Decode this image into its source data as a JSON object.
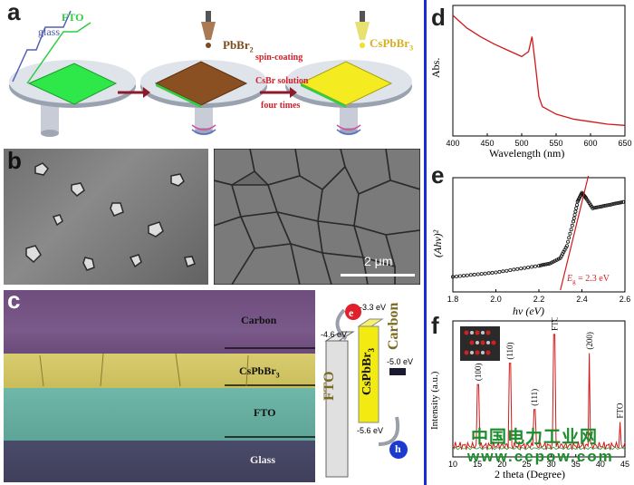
{
  "panels": {
    "a": {
      "label": "a",
      "glass_label": "glass",
      "fto_label": "FTO",
      "pbbr2_label": "PbBr",
      "pbbr2_sub": "2",
      "cspbbr3_label": "CsPbBr",
      "cspbbr3_sub": "3",
      "arrow_label_1": "spin-coating",
      "arrow_label_2": "CsBr solution",
      "arrow_label_3": "four times"
    },
    "b": {
      "label": "b",
      "scale_label": "2 μm"
    },
    "c": {
      "label": "c",
      "layers": [
        "Carbon",
        "CsPbBr3",
        "FTO",
        "Glass"
      ],
      "layer_carbon": "Carbon",
      "layer_perov": "CsPbBr",
      "layer_perov_sub": "3",
      "layer_fto": "FTO",
      "layer_glass": "Glass",
      "band_fto": "FTO",
      "band_perov": "CsPbBr",
      "band_perov_sub": "3",
      "band_carbon": "Carbon",
      "e_cb": "-3.3 eV",
      "e_fto": "-4.6 eV",
      "e_carbon": "-5.0 eV",
      "e_vb": "-5.6 eV",
      "electron": "e",
      "hole": "h"
    },
    "d": {
      "label": "d",
      "ylabel": "Abs.",
      "xlabel": "Wavelength (nm)",
      "xticks": [
        "400",
        "450",
        "500",
        "550",
        "600",
        "650"
      ]
    },
    "e": {
      "label": "e",
      "ylabel": "(Ahν)²",
      "xlabel": "hν (eV)",
      "xticks": [
        "1.8",
        "2.0",
        "2.2",
        "2.4",
        "2.6"
      ],
      "annotation": "Eg = 2.3 eV",
      "ann_E": "E",
      "ann_sub": "g",
      "ann_rest": " = 2.3 eV"
    },
    "f": {
      "label": "f",
      "ylabel": "Intensity (a.u.)",
      "xlabel": "2 theta (Degree)",
      "xticks": [
        "10",
        "15",
        "20",
        "25",
        "30",
        "35",
        "40",
        "45"
      ],
      "peaks": [
        "(100)",
        "(110)",
        "(111)",
        "FTO",
        "(200)",
        "FTO"
      ]
    }
  },
  "watermark": {
    "line1": "中国电力工业网",
    "line2": "www.cepow.com"
  },
  "chart_data": [
    {
      "type": "line",
      "panel": "d",
      "xlabel": "Wavelength (nm)",
      "ylabel": "Abs.",
      "xlim": [
        400,
        650
      ],
      "series": [
        {
          "x": [
            400,
            420,
            440,
            460,
            480,
            500,
            510,
            515,
            520,
            525,
            530,
            550,
            575,
            600,
            625,
            650
          ],
          "y": [
            0.95,
            0.85,
            0.78,
            0.72,
            0.67,
            0.62,
            0.66,
            0.78,
            0.55,
            0.3,
            0.22,
            0.16,
            0.12,
            0.1,
            0.08,
            0.07
          ]
        }
      ]
    },
    {
      "type": "scatter",
      "panel": "e",
      "xlabel": "hν (eV)",
      "ylabel": "(Ahν)²",
      "xlim": [
        1.8,
        2.6
      ],
      "series": [
        {
          "x": [
            1.8,
            1.9,
            2.0,
            2.1,
            2.2,
            2.25,
            2.3,
            2.33,
            2.36,
            2.38,
            2.4,
            2.42,
            2.45,
            2.5,
            2.55,
            2.6
          ],
          "y": [
            0.12,
            0.14,
            0.16,
            0.19,
            0.22,
            0.24,
            0.29,
            0.4,
            0.62,
            0.8,
            0.88,
            0.83,
            0.74,
            0.76,
            0.78,
            0.8
          ]
        }
      ],
      "fit_line": {
        "x": [
          2.3,
          2.43
        ],
        "y": [
          0.0,
          1.0
        ]
      }
    },
    {
      "type": "line",
      "panel": "f",
      "xlabel": "2 theta (Degree)",
      "ylabel": "Intensity (a.u.)",
      "xlim": [
        10,
        45
      ],
      "peaks": [
        {
          "x": 15.2,
          "y": 0.55,
          "label": "(100)"
        },
        {
          "x": 21.6,
          "y": 0.72,
          "label": "(110)"
        },
        {
          "x": 26.6,
          "y": 0.35,
          "label": "(111)"
        },
        {
          "x": 30.7,
          "y": 0.95,
          "label": "FTO"
        },
        {
          "x": 37.8,
          "y": 0.8,
          "label": "(200)"
        },
        {
          "x": 44.0,
          "y": 0.25,
          "label": "FTO"
        }
      ]
    }
  ]
}
